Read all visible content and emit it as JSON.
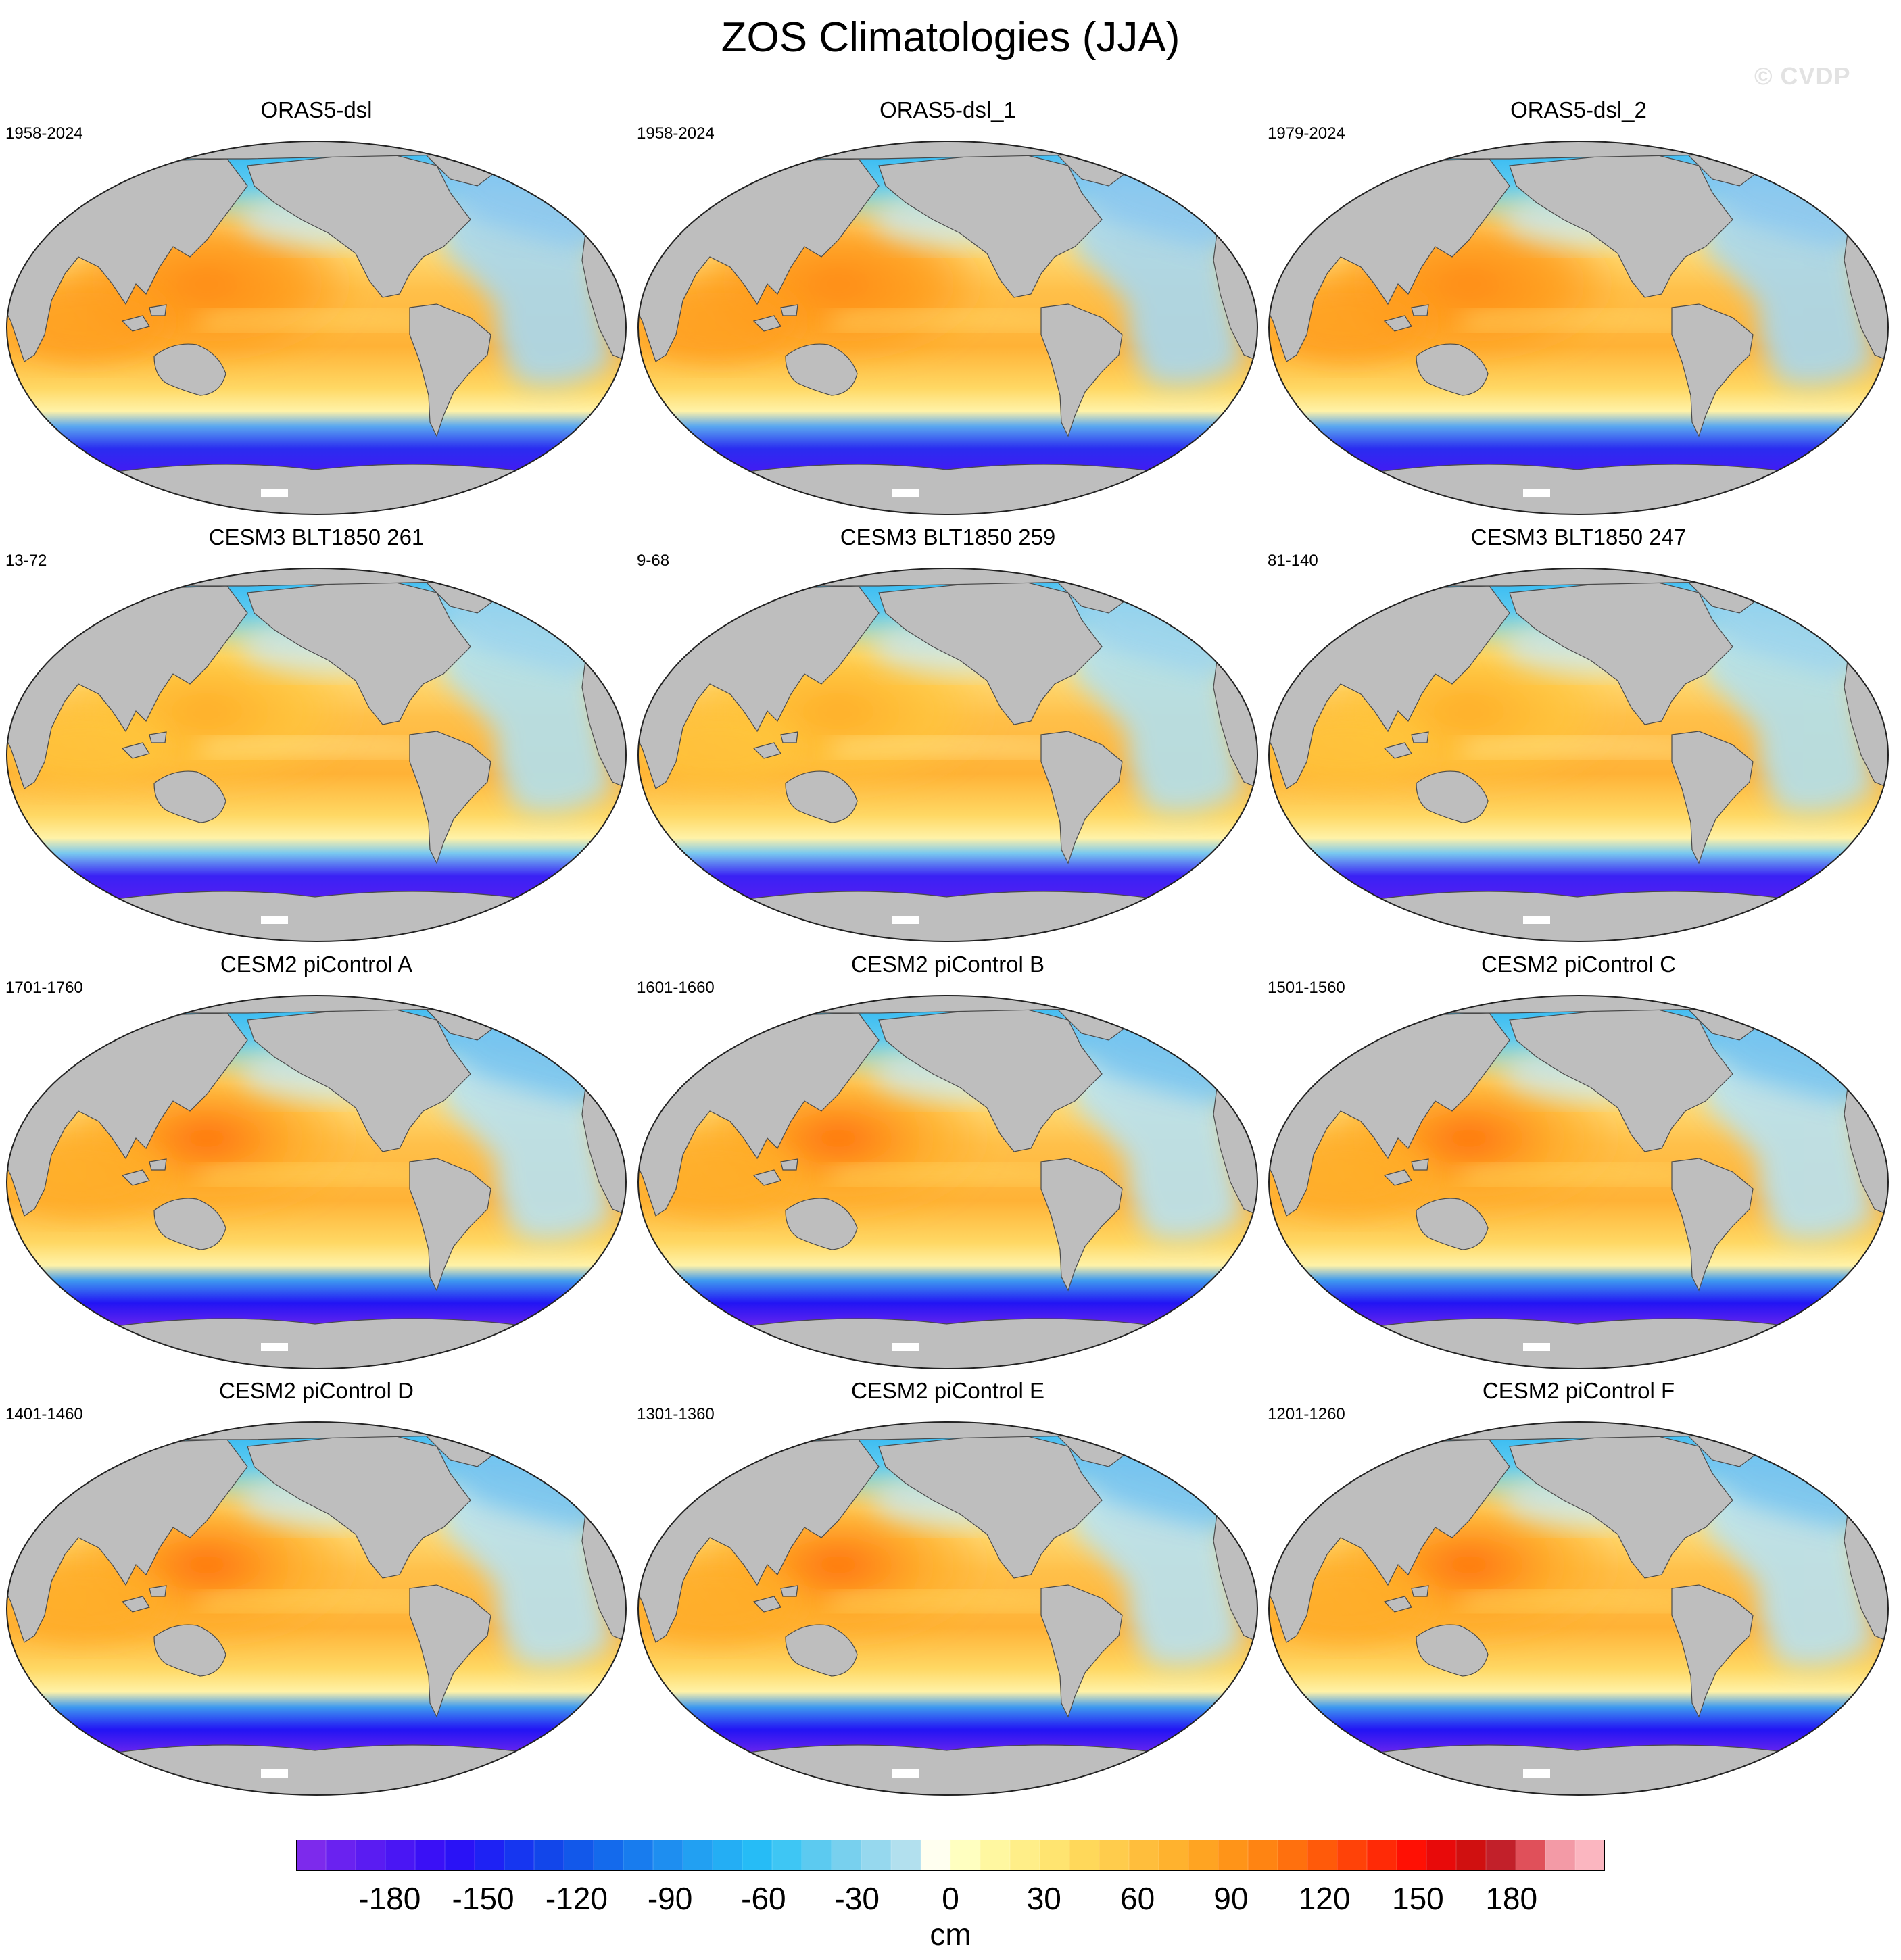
{
  "title": "ZOS Climatologies (JJA)",
  "watermark": "© CVDP",
  "panels": [
    {
      "title": "ORAS5-dsl",
      "years": "1958-2024",
      "style": "oras"
    },
    {
      "title": "ORAS5-dsl_1",
      "years": "1958-2024",
      "style": "oras"
    },
    {
      "title": "ORAS5-dsl_2",
      "years": "1979-2024",
      "style": "oras"
    },
    {
      "title": "CESM3 BLT1850 261",
      "years": "13-72",
      "style": "cesm3"
    },
    {
      "title": "CESM3 BLT1850 259",
      "years": "9-68",
      "style": "cesm3"
    },
    {
      "title": "CESM3 BLT1850 247",
      "years": "81-140",
      "style": "cesm3"
    },
    {
      "title": "CESM2 piControl A",
      "years": "1701-1760",
      "style": "cesm2"
    },
    {
      "title": "CESM2 piControl B",
      "years": "1601-1660",
      "style": "cesm2"
    },
    {
      "title": "CESM2 piControl C",
      "years": "1501-1560",
      "style": "cesm2"
    },
    {
      "title": "CESM2 piControl D",
      "years": "1401-1460",
      "style": "cesm2"
    },
    {
      "title": "CESM2 piControl E",
      "years": "1301-1360",
      "style": "cesm2"
    },
    {
      "title": "CESM2 piControl F",
      "years": "1201-1260",
      "style": "cesm2"
    }
  ],
  "colorbar": {
    "min": -210,
    "max": 210,
    "step": 10,
    "labels": [
      "-180",
      "-150",
      "-120",
      "-90",
      "-60",
      "-30",
      "0",
      "30",
      "60",
      "90",
      "120",
      "150",
      "180"
    ],
    "units": "cm",
    "colors": [
      "#7d2aec",
      "#6a22f0",
      "#5a1cf2",
      "#4a16f4",
      "#3a10f6",
      "#2a12f6",
      "#1e22f4",
      "#1636f0",
      "#1246ea",
      "#1258ea",
      "#146aec",
      "#187cee",
      "#1e8ef0",
      "#22a0f2",
      "#24aef4",
      "#26bcf6",
      "#3ec6f4",
      "#5ccaf0",
      "#78d0ee",
      "#96d8ee",
      "#b2e0ee",
      "#fffff0",
      "#ffffc0",
      "#fff7a0",
      "#ffee88",
      "#ffe470",
      "#ffd85a",
      "#ffcc4c",
      "#ffbe3c",
      "#ffb22e",
      "#ffa422",
      "#ff9418",
      "#ff8412",
      "#ff700e",
      "#ff5a0a",
      "#ff4208",
      "#ff2a06",
      "#ff1004",
      "#e80a0a",
      "#d01010",
      "#c2202a",
      "#e0505a",
      "#f39aa6",
      "#fbb6c0"
    ]
  }
}
